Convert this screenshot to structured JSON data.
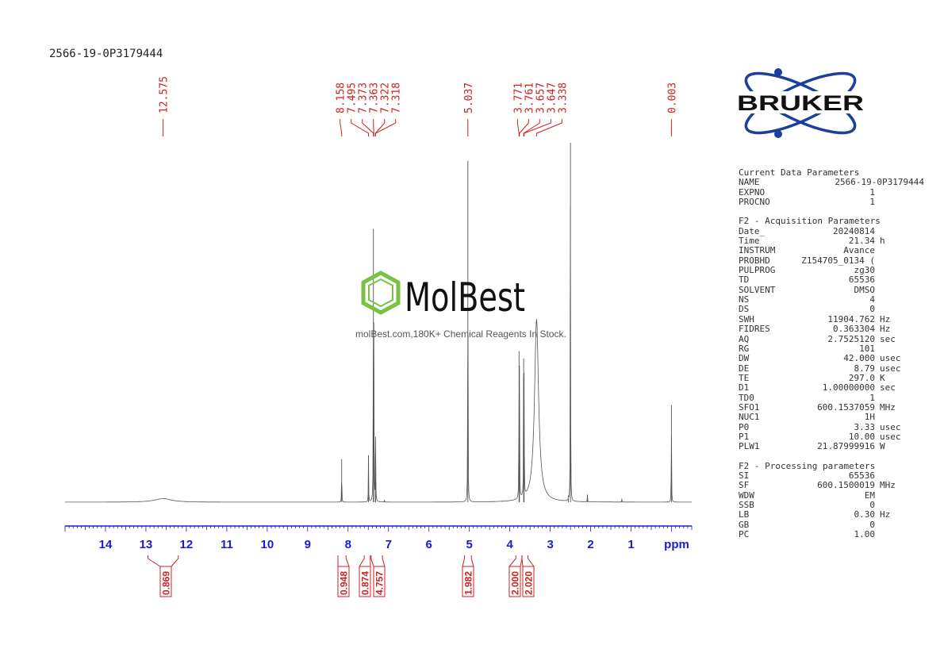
{
  "sample_name": "2566-19-0P3179444",
  "bruker": {
    "logo_text": "BRUKER"
  },
  "watermark": {
    "brand": "MolBest",
    "tagline": "molBest.com,180K+ Chemical Reagents In Stock."
  },
  "parameters": {
    "current": {
      "title": "Current Data Parameters",
      "rows": [
        {
          "key": "NAME",
          "value": "2566-19-0P3179444",
          "unit": ""
        },
        {
          "key": "EXPNO",
          "value": "1",
          "unit": ""
        },
        {
          "key": "PROCNO",
          "value": "1",
          "unit": ""
        }
      ]
    },
    "acquisition": {
      "title": "F2 - Acquisition Parameters",
      "rows": [
        {
          "key": "Date_",
          "value": "20240814",
          "unit": ""
        },
        {
          "key": "Time",
          "value": "21.34",
          "unit": "h"
        },
        {
          "key": "INSTRUM",
          "value": "Avance",
          "unit": ""
        },
        {
          "key": "PROBHD",
          "value": "Z154705_0134 (",
          "unit": ""
        },
        {
          "key": "PULPROG",
          "value": "zg30",
          "unit": ""
        },
        {
          "key": "TD",
          "value": "65536",
          "unit": ""
        },
        {
          "key": "SOLVENT",
          "value": "DMSO",
          "unit": ""
        },
        {
          "key": "NS",
          "value": "4",
          "unit": ""
        },
        {
          "key": "DS",
          "value": "0",
          "unit": ""
        },
        {
          "key": "SWH",
          "value": "11904.762",
          "unit": "Hz"
        },
        {
          "key": "FIDRES",
          "value": "0.363304",
          "unit": "Hz"
        },
        {
          "key": "AQ",
          "value": "2.7525120",
          "unit": "sec"
        },
        {
          "key": "RG",
          "value": "101",
          "unit": ""
        },
        {
          "key": "DW",
          "value": "42.000",
          "unit": "usec"
        },
        {
          "key": "DE",
          "value": "8.79",
          "unit": "usec"
        },
        {
          "key": "TE",
          "value": "297.0",
          "unit": "K"
        },
        {
          "key": "D1",
          "value": "1.00000000",
          "unit": "sec"
        },
        {
          "key": "TD0",
          "value": "1",
          "unit": ""
        },
        {
          "key": "SFO1",
          "value": "600.1537059",
          "unit": "MHz"
        },
        {
          "key": "NUC1",
          "value": "1H",
          "unit": ""
        },
        {
          "key": "P0",
          "value": "3.33",
          "unit": "usec"
        },
        {
          "key": "P1",
          "value": "10.00",
          "unit": "usec"
        },
        {
          "key": "PLW1",
          "value": "21.87999916",
          "unit": "W"
        }
      ]
    },
    "processing": {
      "title": "F2 - Processing parameters",
      "rows": [
        {
          "key": "SI",
          "value": "65536",
          "unit": ""
        },
        {
          "key": "SF",
          "value": "600.1500019",
          "unit": "MHz"
        },
        {
          "key": "WDW",
          "value": "EM",
          "unit": ""
        },
        {
          "key": "SSB",
          "value": "0",
          "unit": ""
        },
        {
          "key": "LB",
          "value": "0.30",
          "unit": "Hz"
        },
        {
          "key": "GB",
          "value": "0",
          "unit": ""
        },
        {
          "key": "PC",
          "value": "1.00",
          "unit": ""
        }
      ]
    }
  },
  "chart_data": {
    "type": "line",
    "xlabel": "ppm",
    "xlim": [
      15,
      -0.5
    ],
    "x_ticks": [
      14,
      13,
      12,
      11,
      10,
      9,
      8,
      7,
      6,
      5,
      4,
      3,
      2,
      1
    ],
    "tick_color": "#1a1ad6",
    "peak_label_color": "#cc2222",
    "line_color": "#555555",
    "peak_labels": [
      {
        "group": [
          12.575
        ],
        "labels": [
          "12.575"
        ]
      },
      {
        "group": [
          8.158,
          7.495,
          7.373,
          7.363,
          7.322,
          7.318
        ],
        "labels": [
          "8.158",
          "7.495",
          "7.373",
          "7.363",
          "7.322",
          "7.318"
        ]
      },
      {
        "group": [
          5.037
        ],
        "labels": [
          "5.037"
        ]
      },
      {
        "group": [
          3.771,
          3.761,
          3.657,
          3.647,
          3.338
        ],
        "labels": [
          "3.771",
          "3.761",
          "3.657",
          "3.647",
          "3.338"
        ]
      },
      {
        "group": [
          0.003
        ],
        "labels": [
          "0.003"
        ]
      }
    ],
    "peaks": [
      {
        "ppm": 12.575,
        "height": 0.01,
        "width": 0.25
      },
      {
        "ppm": 8.158,
        "height": 0.12
      },
      {
        "ppm": 7.495,
        "height": 0.13
      },
      {
        "ppm": 7.373,
        "height": 0.76
      },
      {
        "ppm": 7.363,
        "height": 0.5
      },
      {
        "ppm": 7.322,
        "height": 0.13
      },
      {
        "ppm": 7.318,
        "height": 0.1
      },
      {
        "ppm": 7.1,
        "height": 0.006
      },
      {
        "ppm": 5.037,
        "height": 0.95
      },
      {
        "ppm": 3.771,
        "height": 0.42
      },
      {
        "ppm": 3.761,
        "height": 0.38
      },
      {
        "ppm": 3.657,
        "height": 0.4
      },
      {
        "ppm": 3.647,
        "height": 0.36
      },
      {
        "ppm": 3.338,
        "height": 0.51,
        "width": 0.06
      },
      {
        "ppm": 2.5,
        "height": 1.0
      },
      {
        "ppm": 2.55,
        "height": 0.01
      },
      {
        "ppm": 2.08,
        "height": 0.02
      },
      {
        "ppm": 1.23,
        "height": 0.01
      },
      {
        "ppm": 0.003,
        "height": 0.27
      }
    ],
    "integrals": [
      {
        "from": 12.95,
        "to": 12.2,
        "value": "0.869"
      },
      {
        "from": 8.25,
        "to": 8.05,
        "value": "0.948"
      },
      {
        "from": 7.6,
        "to": 7.45,
        "value": "0.874"
      },
      {
        "from": 7.43,
        "to": 7.15,
        "value": "4.757"
      },
      {
        "from": 5.12,
        "to": 4.95,
        "value": "1.982"
      },
      {
        "from": 3.85,
        "to": 3.7,
        "value": "2.000"
      },
      {
        "from": 3.7,
        "to": 3.55,
        "value": "2.020"
      }
    ]
  }
}
